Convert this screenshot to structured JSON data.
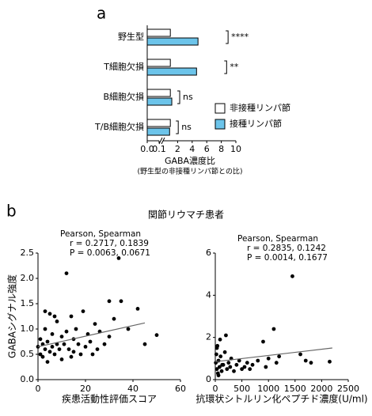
{
  "chart_data": [
    {
      "type": "hbar",
      "label": "a",
      "categories": [
        "野生型",
        "T細胞欠損",
        "B細胞欠損",
        "T/B細胞欠損"
      ],
      "series": [
        {
          "name": "非接種リンパ節",
          "color": "#ffffff",
          "values": [
            1,
            1,
            1,
            1
          ]
        },
        {
          "name": "接種リンパ節",
          "color": "#6cc4ea",
          "values": [
            4.8,
            4.6,
            1.2,
            0.9
          ]
        }
      ],
      "annotations": [
        "****",
        "**",
        "ns",
        "ns"
      ],
      "xlim": [
        0,
        10
      ],
      "xbreak": 0.1,
      "xticks": [
        {
          "value": 0,
          "label": "0.0"
        },
        0.1,
        2,
        4,
        6,
        8,
        10
      ],
      "xlabel": "GABA濃度比",
      "xlabel_note": "(野生型の非接種リンパ節との比)"
    },
    {
      "type": "scatter",
      "label": "b",
      "title": "関節リウマチ患者",
      "xlabel": "疾患活動性評価スコア",
      "ylabel": "GABAシグナル強度",
      "stats": [
        "Pearson, Spearman",
        "r =  0.2717,  0.1839",
        "P =  0.0063,  0.0671"
      ],
      "xlim": [
        0,
        60
      ],
      "xticks": [
        0,
        20,
        40,
        60
      ],
      "ylim": [
        0,
        2.5
      ],
      "yticks": [
        {
          "value": 0,
          "label": "0.0"
        },
        0.5,
        {
          "value": 1,
          "label": "1.0"
        },
        1.5,
        {
          "value": 2,
          "label": "2.0"
        },
        2.5
      ],
      "color": "#000000",
      "x": [
        0,
        1,
        1,
        2,
        2,
        3,
        3,
        4,
        4,
        5,
        5,
        6,
        6,
        7,
        8,
        8,
        9,
        10,
        10,
        11,
        12,
        12,
        13,
        14,
        15,
        15,
        16,
        17,
        18,
        19,
        20,
        21,
        22,
        23,
        24,
        25,
        26,
        28,
        30,
        30,
        32,
        34,
        35,
        38,
        42,
        45,
        50,
        3,
        7,
        14
      ],
      "y": [
        0.65,
        0.5,
        0.8,
        0.7,
        0.45,
        0.6,
        1.0,
        0.75,
        0.35,
        0.55,
        1.3,
        0.65,
        0.9,
        0.5,
        0.7,
        1.15,
        0.6,
        0.85,
        0.4,
        0.7,
        2.1,
        0.95,
        0.6,
        1.25,
        0.55,
        0.8,
        1.0,
        0.7,
        0.5,
        1.35,
        0.65,
        0.9,
        0.75,
        0.5,
        1.1,
        0.6,
        0.95,
        0.7,
        1.55,
        0.85,
        1.2,
        2.4,
        1.55,
        1.0,
        1.4,
        0.7,
        0.88,
        1.35,
        1.25,
        0.45
      ],
      "trend_x": [
        0,
        45
      ],
      "trend_y": [
        0.65,
        1.12
      ]
    },
    {
      "type": "scatter",
      "xlabel": "抗環状シトルリン化ペプチド濃度(U/ml)",
      "stats": [
        "Pearson, Spearman",
        "r =  0.2835,  0.1242",
        "P =  0.0014,  0.1677"
      ],
      "xlim": [
        0,
        2500
      ],
      "xticks": [
        0,
        500,
        1000,
        1500,
        2000,
        2500
      ],
      "ylim": [
        0,
        6
      ],
      "yticks": [
        0,
        2,
        4,
        6
      ],
      "color": "#000000",
      "x": [
        10,
        20,
        30,
        40,
        50,
        60,
        80,
        100,
        120,
        150,
        180,
        200,
        220,
        250,
        280,
        300,
        350,
        400,
        450,
        500,
        550,
        600,
        650,
        700,
        800,
        900,
        950,
        1000,
        1100,
        1150,
        1200,
        1450,
        1600,
        1700,
        1800,
        2150,
        30,
        60,
        90,
        130
      ],
      "y": [
        0.8,
        1.2,
        0.5,
        1.6,
        0.3,
        0.9,
        0.6,
        1.1,
        0.4,
        0.7,
        1.3,
        2.1,
        0.5,
        0.8,
        0.6,
        1.0,
        0.4,
        0.7,
        0.9,
        0.5,
        0.6,
        0.8,
        0.5,
        0.7,
        0.9,
        1.8,
        0.6,
        1.0,
        2.4,
        0.8,
        1.1,
        4.9,
        1.2,
        0.9,
        0.8,
        0.85,
        1.5,
        0.2,
        1.9,
        0.7
      ],
      "trend_x": [
        0,
        2200
      ],
      "trend_y": [
        0.85,
        1.5
      ]
    }
  ]
}
